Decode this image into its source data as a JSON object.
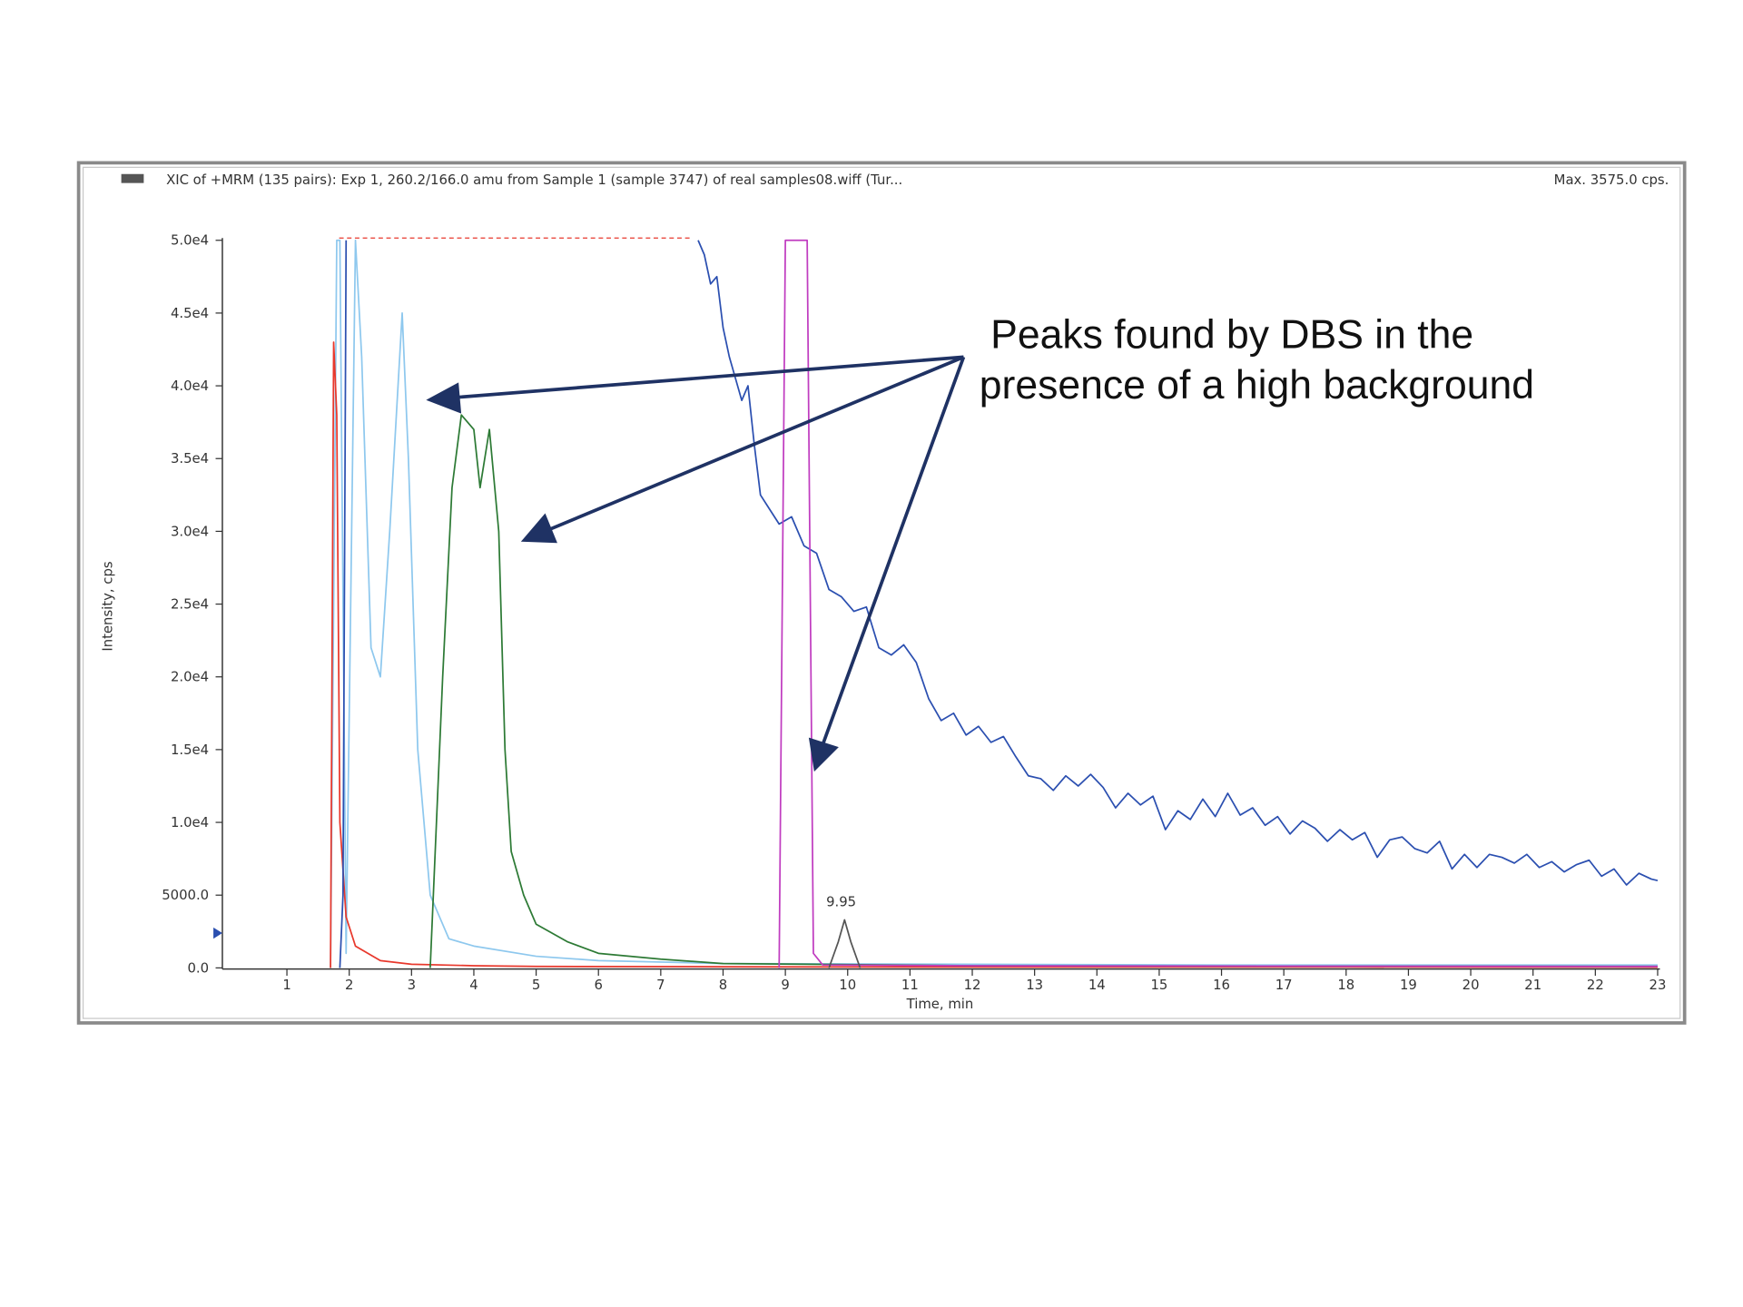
{
  "chart_data": {
    "type": "line",
    "title": "XIC of +MRM (135 pairs): Exp 1, 260.2/166.0 amu from Sample 1 (sample 3747) of real samples08.wiff (Tur...",
    "subtitle": "Max. 3575.0 cps.",
    "x_label": "Time, min",
    "y_label": "Intensity, cps",
    "annotations": [
      "Peaks found by DBS in the",
      "presence of a high background"
    ],
    "peak_label": "9.95",
    "xlim": [
      0,
      23
    ],
    "ylim": [
      0,
      50000
    ],
    "xticks": [
      1,
      2,
      3,
      4,
      5,
      6,
      7,
      8,
      9,
      10,
      11,
      12,
      13,
      14,
      15,
      16,
      17,
      18,
      19,
      20,
      21,
      22,
      23
    ],
    "yticks": [
      {
        "value": 0,
        "label": "0.0"
      },
      {
        "value": 5000,
        "label": "5000.0"
      },
      {
        "value": 10000,
        "label": "1.0e4"
      },
      {
        "value": 15000,
        "label": "1.5e4"
      },
      {
        "value": 20000,
        "label": "2.0e4"
      },
      {
        "value": 25000,
        "label": "2.5e4"
      },
      {
        "value": 30000,
        "label": "3.0e4"
      },
      {
        "value": 35000,
        "label": "3.5e4"
      },
      {
        "value": 40000,
        "label": "4.0e4"
      },
      {
        "value": 45000,
        "label": "4.5e4"
      },
      {
        "value": 50000,
        "label": "5.0e4"
      }
    ],
    "series": [
      {
        "color": "#8ec8ee",
        "x": [
          1.7,
          1.8,
          1.85,
          1.95,
          2.1,
          2.2,
          2.35,
          2.5,
          2.65,
          2.85,
          2.95,
          3.1,
          3.3,
          3.6,
          4.0,
          5.0,
          6.0,
          8.0,
          12.0,
          16.0,
          20.0,
          23.0
        ],
        "values": [
          0,
          50000,
          50000,
          1000,
          50000,
          42000,
          22000,
          20000,
          30000,
          45000,
          35000,
          15000,
          5000,
          2000,
          1500,
          800,
          500,
          300,
          250,
          200,
          200,
          200
        ]
      },
      {
        "color": "#e8382c",
        "x": [
          1.7,
          1.75,
          1.8,
          1.85,
          1.95,
          2.1,
          2.5,
          3.0,
          4.0,
          5.0,
          8.0,
          12.0,
          18.0,
          23.0
        ],
        "values": [
          0,
          43000,
          38000,
          10000,
          3500,
          1500,
          500,
          250,
          150,
          100,
          80,
          60,
          60,
          50
        ]
      },
      {
        "color": "#2b4fb0",
        "x": [
          1.85,
          1.9,
          1.95,
          2.0,
          7.6,
          7.7,
          7.8,
          7.9,
          8.0,
          8.1,
          8.2,
          8.3,
          8.4,
          8.5,
          8.6,
          8.75,
          8.9,
          9.1,
          9.3,
          9.5,
          9.7,
          9.9,
          10.1,
          10.3,
          10.5,
          10.7,
          10.9,
          11.1,
          11.3,
          11.5,
          11.7,
          11.9,
          12.1,
          12.3,
          12.5,
          12.7,
          12.9,
          13.1,
          13.3,
          13.5,
          13.7,
          13.9,
          14.1,
          14.3,
          14.5,
          14.7,
          14.9,
          15.1,
          15.3,
          15.5,
          15.7,
          15.9,
          16.1,
          16.3,
          16.5,
          16.7,
          16.9,
          17.1,
          17.3,
          17.5,
          17.7,
          17.9,
          18.1,
          18.3,
          18.5,
          18.7,
          18.9,
          19.1,
          19.3,
          19.5,
          19.7,
          19.9,
          20.1,
          20.3,
          20.5,
          20.7,
          20.9,
          21.1,
          21.3,
          21.5,
          21.7,
          21.9,
          22.1,
          22.3,
          22.5,
          22.7,
          22.9,
          23.0
        ],
        "values": [
          0,
          5000,
          50000,
          null,
          50000,
          49000,
          47000,
          47500,
          44000,
          42000,
          40500,
          39000,
          40000,
          36000,
          32500,
          31500,
          30500,
          31000,
          29000,
          28500,
          26000,
          25500,
          24500,
          24800,
          22000,
          21500,
          22200,
          21000,
          18500,
          17000,
          17500,
          16000,
          16600,
          15500,
          15900,
          14500,
          13200,
          13000,
          12200,
          13200,
          12500,
          13300,
          12400,
          11000,
          12000,
          11200,
          11800,
          9500,
          10800,
          10200,
          11600,
          10400,
          12000,
          10500,
          11000,
          9800,
          10400,
          9200,
          10100,
          9600,
          8700,
          9500,
          8800,
          9300,
          7600,
          8800,
          9000,
          8200,
          7900,
          8700,
          6800,
          7800,
          6900,
          7800,
          7600,
          7200,
          7800,
          6900,
          7300,
          6600,
          7100,
          7400,
          6300,
          6800,
          5700,
          6500,
          6100,
          6000
        ]
      },
      {
        "color": "#2d7a35",
        "x": [
          3.3,
          3.5,
          3.65,
          3.8,
          3.9,
          4.0,
          4.1,
          4.25,
          4.4,
          4.5,
          4.6,
          4.8,
          5.0,
          5.5,
          6.0,
          7.0,
          8.0,
          12.0,
          18.0,
          23.0
        ],
        "values": [
          0,
          20000,
          33000,
          38000,
          37500,
          37000,
          33000,
          37000,
          30000,
          15000,
          8000,
          5000,
          3000,
          1800,
          1000,
          600,
          300,
          150,
          120,
          100
        ]
      },
      {
        "color": "#c03cc0",
        "x": [
          8.9,
          9.0,
          9.1,
          9.3,
          9.35,
          9.45,
          9.6,
          12.0,
          18.0,
          23.0
        ],
        "values": [
          0,
          50000,
          50000,
          50000,
          50000,
          1000,
          200,
          150,
          120,
          100
        ]
      },
      {
        "color": "#555555",
        "x": [
          9.7,
          9.85,
          9.95,
          10.05,
          10.2
        ],
        "values": [
          0,
          1800,
          3300,
          1800,
          0
        ]
      }
    ]
  }
}
